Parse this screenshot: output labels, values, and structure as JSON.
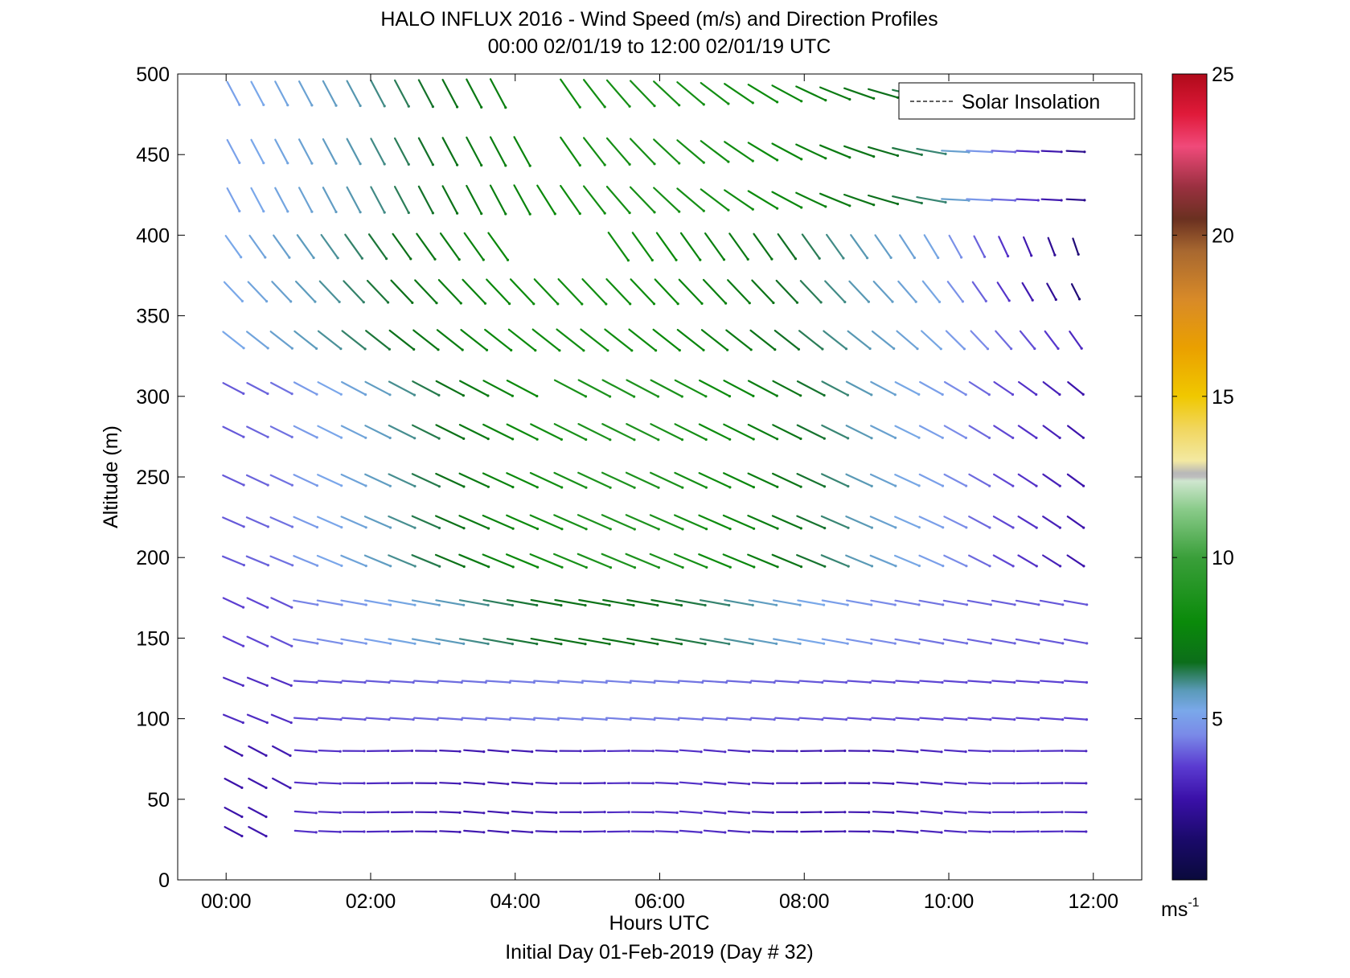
{
  "chart_data": {
    "type": "quiver",
    "title": "HALO INFLUX 2016 - Wind Speed (m/s) and Direction Profiles",
    "subtitle": "00:00 02/01/19 to 12:00 02/01/19  UTC",
    "xlabel": "Hours UTC",
    "footer": "Initial Day 01-Feb-2019 (Day # 32)",
    "ylabel": "Altitude (m)",
    "xlim": [
      -0.67,
      12.67
    ],
    "ylim": [
      0,
      500
    ],
    "xticks": [
      0,
      2,
      4,
      6,
      8,
      10,
      12
    ],
    "xtick_labels": [
      "00:00",
      "02:00",
      "04:00",
      "06:00",
      "08:00",
      "10:00",
      "12:00"
    ],
    "yticks": [
      0,
      50,
      100,
      150,
      200,
      250,
      300,
      350,
      400,
      450,
      500
    ],
    "ytick_labels": [
      "0",
      "50",
      "100",
      "150",
      "200",
      "250",
      "300",
      "350",
      "400",
      "450",
      "500"
    ],
    "legend": {
      "position": "top-right",
      "entries": [
        "Solar Insolation"
      ]
    },
    "colorbar": {
      "min": 0,
      "max": 25,
      "ticks": [
        5,
        10,
        15,
        20,
        25
      ],
      "tick_labels": [
        "5",
        "10",
        "15",
        "20",
        "25"
      ],
      "unit": "ms",
      "unit_exponent": "-1"
    },
    "time_step_hours": 0.333,
    "altitudes": [
      30,
      42,
      60,
      80,
      100,
      123,
      148,
      172,
      198,
      222,
      248,
      278,
      305,
      335,
      365,
      393,
      422,
      452,
      488
    ],
    "gaps": [
      {
        "altitude": 30,
        "from_hours": 0.7,
        "to_hours": 0.95
      },
      {
        "altitude": 42,
        "from_hours": 0.7,
        "to_hours": 0.95
      },
      {
        "altitude": 488,
        "from_hours": 4.0,
        "to_hours": 4.6
      },
      {
        "altitude": 393,
        "from_hours": 4.0,
        "to_hours": 5.4
      },
      {
        "altitude": 305,
        "from_hours": 4.1,
        "to_hours": 4.75
      },
      {
        "altitude": 452,
        "from_hours": 4.1,
        "to_hours": 4.7
      }
    ],
    "barbs": [
      {
        "altitude": 30,
        "speed": 3.0,
        "direction": "westerly, slight variation"
      },
      {
        "altitude": 60,
        "speed": 3.1,
        "direction": "westerly"
      },
      {
        "altitude": 100,
        "speed": 3.6,
        "direction": "westerly"
      },
      {
        "altitude": 123,
        "speed": 4.0,
        "direction": "westerly"
      },
      {
        "altitude": 148,
        "speed": 5.0,
        "direction": "westerly"
      },
      {
        "altitude": 172,
        "speed": 6.5,
        "direction": "west-northwesterly"
      },
      {
        "altitude": 198,
        "speed": 7.5,
        "direction": "west-northwesterly"
      },
      {
        "altitude": 222,
        "speed": 8.0,
        "direction": "northwesterly"
      },
      {
        "altitude": 248,
        "speed": 8.5,
        "direction": "northwesterly"
      },
      {
        "altitude": 278,
        "speed": 8.5,
        "direction": "northwesterly"
      },
      {
        "altitude": 305,
        "speed": 8.0,
        "direction": "northwesterly"
      },
      {
        "altitude": 335,
        "speed": 8.0,
        "direction": "northwesterly"
      },
      {
        "altitude": 365,
        "speed": 8.0,
        "direction": "north-northwesterly"
      },
      {
        "altitude": 393,
        "speed": 8.0,
        "direction": "north-northwesterly"
      },
      {
        "altitude": 422,
        "speed": 8.0,
        "direction": "north-northwesterly"
      },
      {
        "altitude": 452,
        "speed": 8.0,
        "direction": "northerly to southwesterly"
      },
      {
        "altitude": 488,
        "speed": 8.0,
        "direction": "northerly to southwesterly"
      }
    ]
  }
}
